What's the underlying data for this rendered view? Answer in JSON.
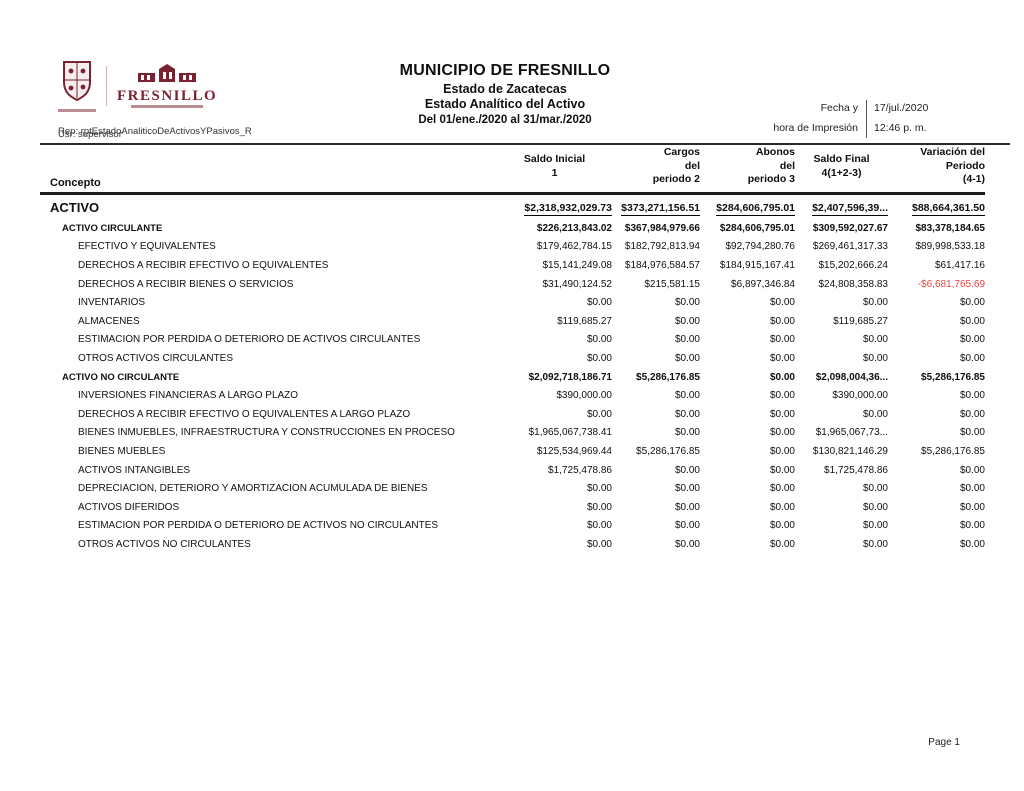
{
  "colors": {
    "accent_maroon": "#7a2330",
    "negative_value": "#e8423c",
    "rule": "#1c1c1c"
  },
  "logo": {
    "crest_icon": "municipal-shield",
    "wordmark": "FRESNILLO"
  },
  "header": {
    "title": "MUNICIPIO DE FRESNILLO",
    "subtitle": "Estado de Zacatecas",
    "report_name": "Estado Analítico del Activo",
    "period": "Del 01/ene./2020 al 31/mar./2020",
    "print_label_line1": "Fecha y",
    "print_label_line2": "hora de Impresión",
    "print_date": "17/jul./2020",
    "print_time": "12:46 p. m.",
    "report_id": "Rep: rptEstadoAnaliticoDeActivosYPasivos_R",
    "user_id": "Usr: supervisor"
  },
  "table": {
    "concept_header": "Concepto",
    "columns": [
      {
        "lines": [
          "Saldo Inicial",
          "1"
        ]
      },
      {
        "lines": [
          "Cargos",
          "del",
          "periodo 2"
        ]
      },
      {
        "lines": [
          "Abonos",
          "del",
          "periodo 3"
        ]
      },
      {
        "lines": [
          "Saldo Final",
          "4(1+2-3)"
        ]
      },
      {
        "lines": [
          "Variación del",
          "Periodo",
          "(4-1)"
        ]
      }
    ],
    "rows": [
      {
        "concept": "ACTIVO",
        "level": 0,
        "style": "total",
        "values": [
          "$2,318,932,029.73",
          "$373,271,156.51",
          "$284,606,795.01",
          "$2,407,596,39...",
          "$88,664,361.50"
        ]
      },
      {
        "concept": "ACTIVO CIRCULANTE",
        "level": 1,
        "values": [
          "$226,213,843.02",
          "$367,984,979.66",
          "$284,606,795.01",
          "$309,592,027.67",
          "$83,378,184.65"
        ]
      },
      {
        "concept": "EFECTIVO Y EQUIVALENTES",
        "level": 2,
        "values": [
          "$179,462,784.15",
          "$182,792,813.94",
          "$92,794,280.76",
          "$269,461,317.33",
          "$89,998,533.18"
        ]
      },
      {
        "concept": "DERECHOS A RECIBIR EFECTIVO O EQUIVALENTES",
        "level": 2,
        "values": [
          "$15,141,249.08",
          "$184,976,584.57",
          "$184,915,167.41",
          "$15,202,666.24",
          "$61,417.16"
        ]
      },
      {
        "concept": "DERECHOS A RECIBIR BIENES O SERVICIOS",
        "level": 2,
        "values": [
          "$31,490,124.52",
          "$215,581.15",
          "$6,897,346.84",
          "$24,808,358.83",
          "-$6,681,765.69"
        ]
      },
      {
        "concept": "INVENTARIOS",
        "level": 2,
        "values": [
          "$0.00",
          "$0.00",
          "$0.00",
          "$0.00",
          "$0.00"
        ]
      },
      {
        "concept": "ALMACENES",
        "level": 2,
        "values": [
          "$119,685.27",
          "$0.00",
          "$0.00",
          "$119,685.27",
          "$0.00"
        ]
      },
      {
        "concept": "ESTIMACIÓN POR PÉRDIDA O DETERIORO DE ACTIVOS CIRCULANTES",
        "level": 2,
        "values": [
          "$0.00",
          "$0.00",
          "$0.00",
          "$0.00",
          "$0.00"
        ]
      },
      {
        "concept": "OTROS ACTIVOS CIRCULANTES",
        "level": 2,
        "values": [
          "$0.00",
          "$0.00",
          "$0.00",
          "$0.00",
          "$0.00"
        ]
      },
      {
        "concept": "ACTIVO NO CIRCULANTE",
        "level": 1,
        "values": [
          "$2,092,718,186.71",
          "$5,286,176.85",
          "$0.00",
          "$2,098,004,36...",
          "$5,286,176.85"
        ]
      },
      {
        "concept": "INVERSIONES FINANCIERAS A LARGO PLAZO",
        "level": 2,
        "values": [
          "$390,000.00",
          "$0.00",
          "$0.00",
          "$390,000.00",
          "$0.00"
        ]
      },
      {
        "concept": "DERECHOS A RECIBIR EFECTIVO O EQUIVALENTES A LARGO PLAZO",
        "level": 2,
        "values": [
          "$0.00",
          "$0.00",
          "$0.00",
          "$0.00",
          "$0.00"
        ]
      },
      {
        "concept": "BIENES INMUEBLES, INFRAESTRUCTURA Y CONSTRUCCIONES EN PROCESO",
        "level": 2,
        "values": [
          "$1,965,067,738.41",
          "$0.00",
          "$0.00",
          "$1,965,067,73...",
          "$0.00"
        ]
      },
      {
        "concept": "BIENES MUEBLES",
        "level": 2,
        "values": [
          "$125,534,969.44",
          "$5,286,176.85",
          "$0.00",
          "$130,821,146.29",
          "$5,286,176.85"
        ]
      },
      {
        "concept": "ACTIVOS INTANGIBLES",
        "level": 2,
        "values": [
          "$1,725,478.86",
          "$0.00",
          "$0.00",
          "$1,725,478.86",
          "$0.00"
        ]
      },
      {
        "concept": "DEPRECIACIÓN, DETERIORO Y AMORTIZACIÓN ACUMULADA DE BIENES",
        "level": 2,
        "values": [
          "$0.00",
          "$0.00",
          "$0.00",
          "$0.00",
          "$0.00"
        ]
      },
      {
        "concept": "ACTIVOS DIFERIDOS",
        "level": 2,
        "values": [
          "$0.00",
          "$0.00",
          "$0.00",
          "$0.00",
          "$0.00"
        ]
      },
      {
        "concept": "ESTIMACIÓN POR PÉRDIDA O DETERIORO DE ACTIVOS NO CIRCULANTES",
        "level": 2,
        "values": [
          "$0.00",
          "$0.00",
          "$0.00",
          "$0.00",
          "$0.00"
        ]
      },
      {
        "concept": "OTROS ACTIVOS NO CIRCULANTES",
        "level": 2,
        "values": [
          "$0.00",
          "$0.00",
          "$0.00",
          "$0.00",
          "$0.00"
        ]
      }
    ]
  },
  "footer": {
    "page_label": "Page 1"
  }
}
